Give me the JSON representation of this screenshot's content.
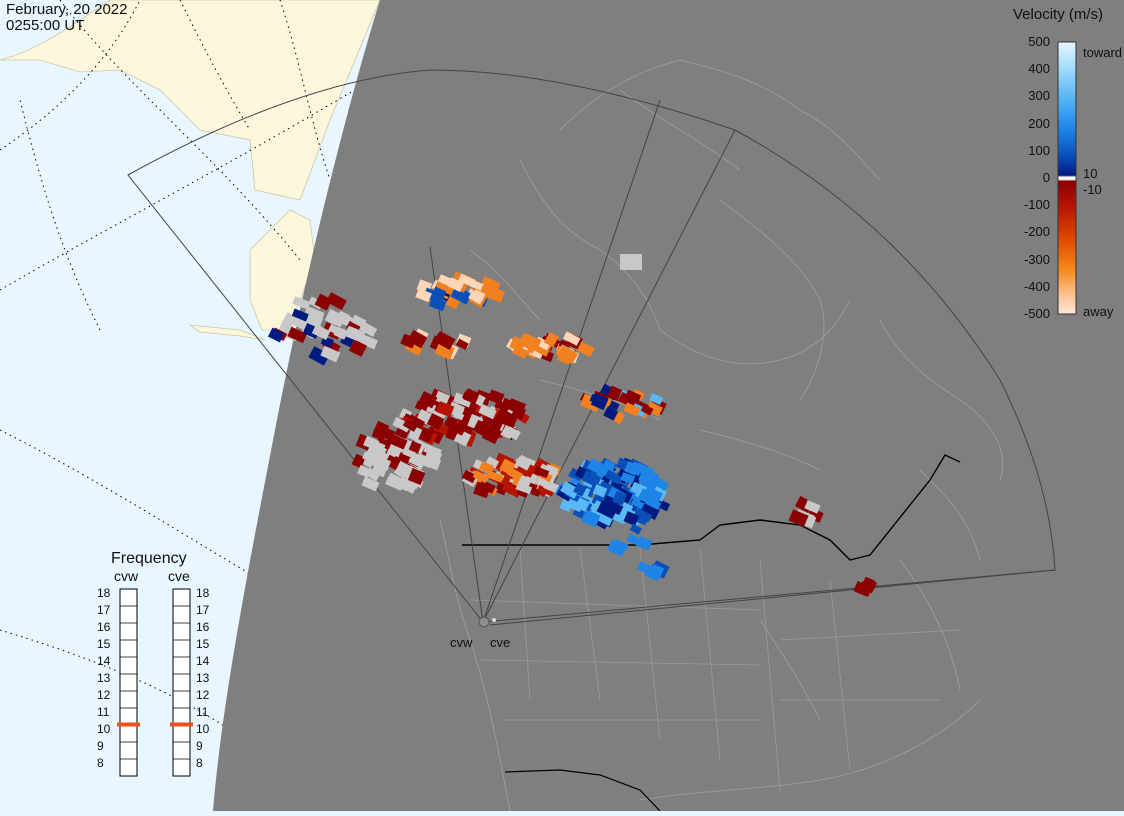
{
  "header": {
    "date": "February, 20 2022",
    "time": "0255:00 UT"
  },
  "colors": {
    "ocean": "#e8f6ff",
    "night": "#7f7f7f",
    "land_day": "#fbf6dc",
    "ground_scatter": "#c8c8c8",
    "radar_marker": "#e8521c"
  },
  "velocity_scale": {
    "title": "Velocity (m/s)",
    "ticks": [
      "500",
      "400",
      "300",
      "200",
      "100",
      "0",
      "-100",
      "-200",
      "-300",
      "-400",
      "-500"
    ],
    "near_zero_labels": [
      "10",
      "-10"
    ],
    "toward_label": "toward",
    "away_label": "away",
    "gradient": [
      "#e6f6ff",
      "#aee0ff",
      "#5ab8f5",
      "#1e84e6",
      "#0a4fb8",
      "#001a80",
      "#ffffff",
      "#8b0000",
      "#b41400",
      "#dc4600",
      "#f58c1e",
      "#fdc8a0",
      "#ffe8d6"
    ]
  },
  "radars": {
    "west": "cvw",
    "east": "cve"
  },
  "frequency": {
    "title": "Frequency",
    "left_label": "cvw",
    "right_label": "cve",
    "scale": [
      "18",
      "17",
      "16",
      "15",
      "14",
      "13",
      "12",
      "11",
      "10",
      "9",
      "8"
    ],
    "cvw_mhz": 10.5,
    "cve_mhz": 10.5
  }
}
